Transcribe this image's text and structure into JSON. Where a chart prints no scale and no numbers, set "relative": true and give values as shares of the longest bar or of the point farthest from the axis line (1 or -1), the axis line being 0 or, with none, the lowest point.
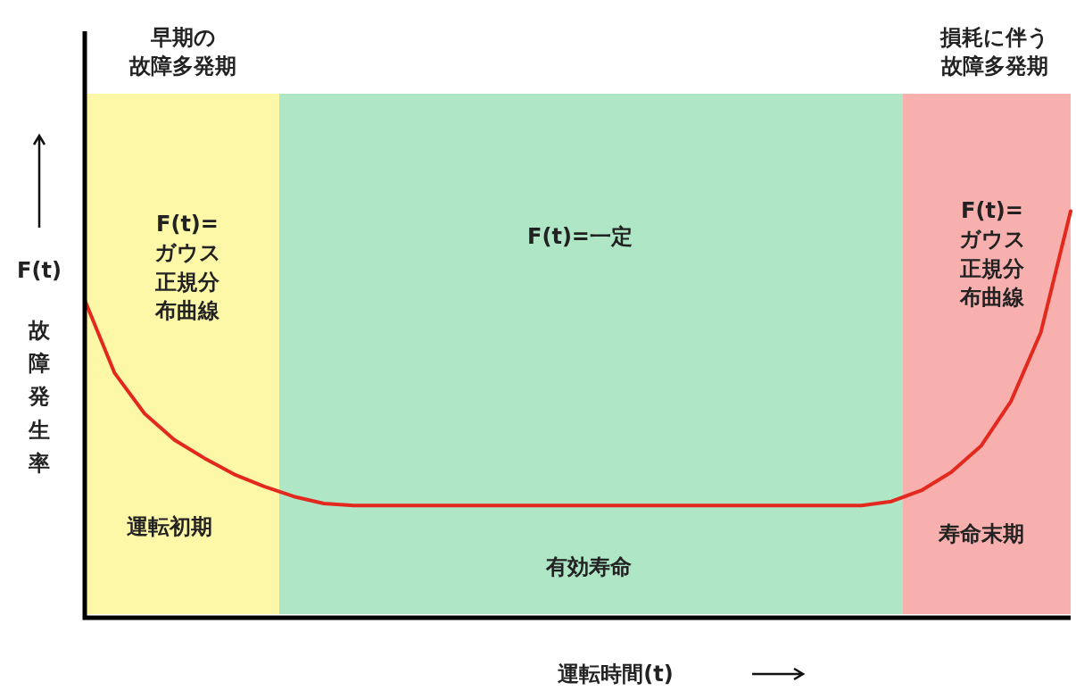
{
  "chart_data": {
    "type": "line",
    "relative": true,
    "xlabel": "運転時間(t)",
    "ylabel": "F(t)故障発生率",
    "categories": [
      null,
      null,
      null,
      null,
      null,
      null,
      null,
      null,
      null,
      null,
      null,
      null,
      null,
      null,
      null,
      null,
      null,
      null,
      null,
      null,
      null,
      null,
      null,
      null,
      null,
      null,
      null,
      null,
      null,
      null,
      null,
      null,
      null,
      null
    ],
    "series": [
      {
        "color": "#e3281e",
        "values": [
          0.78,
          0.6,
          0.5,
          0.435,
          0.39,
          0.35,
          0.32,
          0.295,
          0.278,
          0.273,
          0.273,
          0.273,
          0.273,
          0.273,
          0.273,
          0.273,
          0.273,
          0.273,
          0.273,
          0.273,
          0.273,
          0.273,
          0.273,
          0.273,
          0.273,
          0.273,
          0.273,
          0.283,
          0.31,
          0.355,
          0.42,
          0.53,
          0.7,
          1
        ]
      }
    ],
    "tick_labels": false,
    "marker": "none",
    "line_style": "solid",
    "legend": false,
    "annotations": [
      "早期の故障多発期",
      "損耗に伴う故障多発期",
      "F(t)=ガウス正規分布曲線",
      "F(t)=一定",
      "F(t)=ガウス正規分布曲線",
      "運転初期",
      "有効寿命",
      "寿命末期"
    ]
  }
}
